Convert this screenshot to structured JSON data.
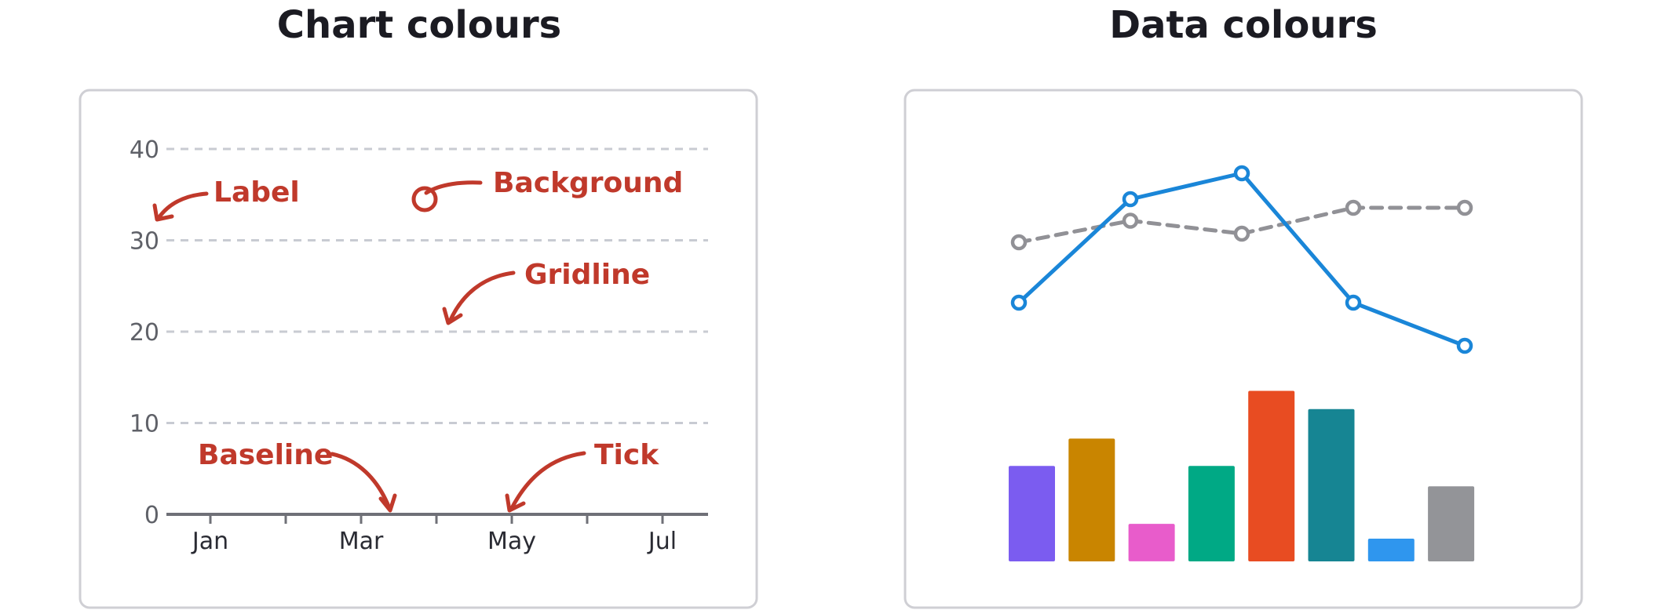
{
  "left_panel": {
    "title": "Chart colours",
    "y_ticks": [
      "0",
      "10",
      "20",
      "30",
      "40"
    ],
    "x_ticks": [
      "Jan",
      "Mar",
      "May",
      "Jul"
    ],
    "annotations": {
      "label": "Label",
      "background": "Background",
      "gridline": "Gridline",
      "baseline": "Baseline",
      "tick": "Tick"
    },
    "annotation_color": "#c0392b"
  },
  "right_panel": {
    "title": "Data colours",
    "chart_data": {
      "type": "line",
      "x": [
        1,
        2,
        3,
        4,
        5
      ],
      "series": [
        {
          "style": "solid",
          "color": "#1a86d8",
          "values": [
            23,
            35,
            38,
            23,
            18
          ]
        },
        {
          "style": "dashed",
          "color": "#919196",
          "values": [
            30,
            32.5,
            31,
            34,
            34
          ]
        }
      ]
    },
    "bar_data": {
      "type": "bar",
      "values": [
        8.4,
        10.8,
        3.3,
        8.4,
        15.0,
        13.4,
        2.0,
        6.6
      ],
      "colors": [
        "#7b5cf0",
        "#c98500",
        "#e85ccb",
        "#00a985",
        "#e84c22",
        "#168593",
        "#2f96ee",
        "#939498"
      ]
    }
  },
  "colors": {
    "frame": "#cfcfd4",
    "gridline": "#c8cbd2",
    "baseline": "#6f7077"
  }
}
